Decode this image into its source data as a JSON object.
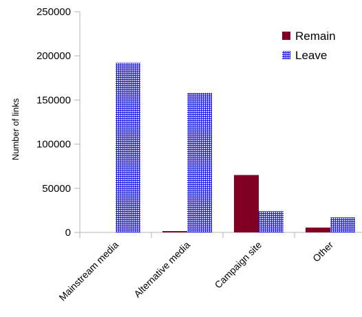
{
  "chart_data": {
    "type": "bar",
    "categories": [
      "Mainstream media",
      "Alternative media",
      "Campaign site",
      "Other"
    ],
    "series": [
      {
        "name": "Remain",
        "values": [
          0,
          1500,
          65000,
          5500
        ],
        "color": "#7f0022",
        "pattern": "solid"
      },
      {
        "name": "Leave",
        "values": [
          192000,
          158000,
          24000,
          17000
        ],
        "color": "#1a1aff",
        "pattern": "hash"
      }
    ],
    "title": "",
    "xlabel": "",
    "ylabel": "Number of links",
    "ylim": [
      0,
      250000
    ],
    "yticks": [
      "0",
      "50000",
      "100000",
      "150000",
      "200000",
      "250000"
    ],
    "grid": false,
    "legend_position": "top-right"
  }
}
